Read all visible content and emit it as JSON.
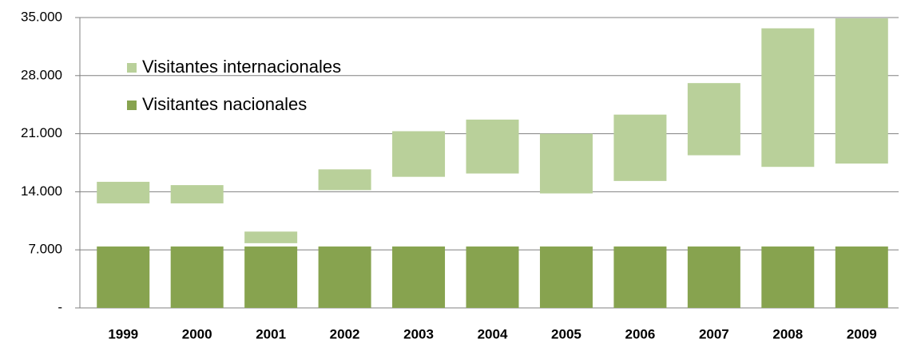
{
  "chart_data": {
    "type": "floating-bar",
    "categories": [
      "1999",
      "2000",
      "2001",
      "2002",
      "2003",
      "2004",
      "2005",
      "2006",
      "2007",
      "2008",
      "2009"
    ],
    "series": [
      {
        "name": "Visitantes internacionales",
        "color": "#b9d09a",
        "low": [
          12600,
          12600,
          7800,
          14200,
          15800,
          16200,
          13800,
          15300,
          18400,
          17000,
          17400
        ],
        "high": [
          15200,
          14800,
          9200,
          16700,
          21300,
          22700,
          21000,
          23300,
          27100,
          33700,
          34900
        ]
      },
      {
        "name": "Visitantes nacionales",
        "color": "#87a34f",
        "values": [
          7400,
          7400,
          7400,
          7400,
          7400,
          7400,
          7400,
          7400,
          7400,
          7400,
          7400
        ]
      }
    ],
    "ylim": [
      0,
      35000
    ],
    "yticks": [
      {
        "value": 0,
        "label": "-"
      },
      {
        "value": 7000,
        "label": "7.000"
      },
      {
        "value": 14000,
        "label": "14.000"
      },
      {
        "value": 21000,
        "label": "21.000"
      },
      {
        "value": 28000,
        "label": "28.000"
      },
      {
        "value": 35000,
        "label": "35.000"
      }
    ],
    "grid": true
  }
}
